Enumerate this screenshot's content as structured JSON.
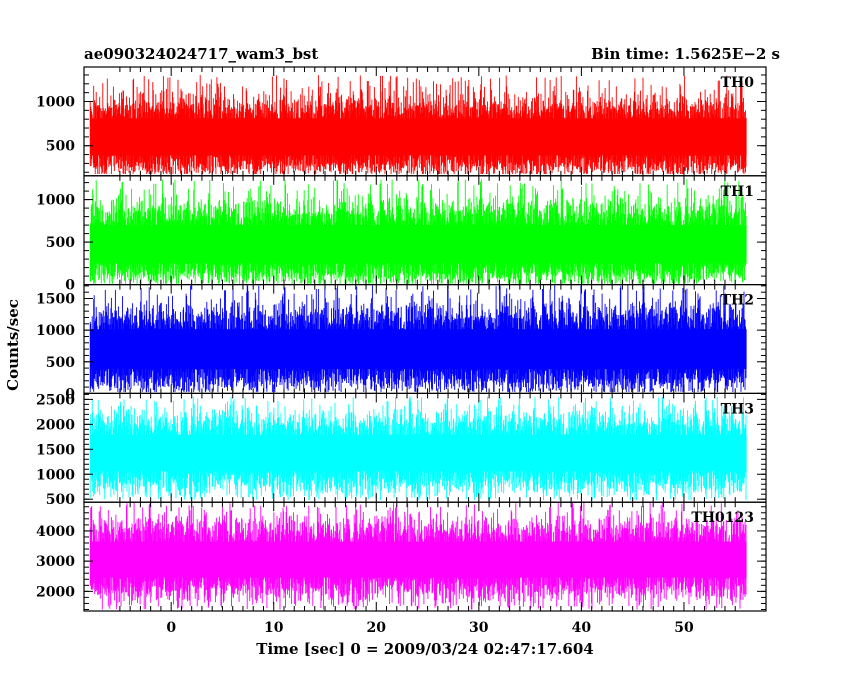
{
  "chart_data": {
    "type": "line",
    "title_left": "ae090324024717_wam3_bst",
    "title_right": "Bin time: 1.5625E−2 s",
    "xlabel": "Time [sec] 0 = 2009/03/24 02:47:17.604",
    "ylabel": "Counts/sec",
    "xlim": [
      -8.5,
      58
    ],
    "data_x_range": [
      -7.9,
      56.1
    ],
    "bin_time": 0.015625,
    "x_ticks": [
      "0",
      "10",
      "20",
      "30",
      "40",
      "50"
    ],
    "x_tick_values": [
      0,
      10,
      20,
      30,
      40,
      50
    ],
    "panels": [
      {
        "name": "TH0",
        "color": "#ff0000",
        "ylim": [
          160,
          1390
        ],
        "yticks": [
          "500",
          "1000"
        ],
        "ytick_values": [
          500,
          1000
        ],
        "noise": {
          "low": 180,
          "high": 1300,
          "mean": 560,
          "core_low": 300,
          "core_high": 900
        }
      },
      {
        "name": "TH1",
        "color": "#00ff00",
        "ylim": [
          0,
          1280
        ],
        "yticks": [
          "0",
          "500",
          "1000"
        ],
        "ytick_values": [
          0,
          500,
          1000
        ],
        "noise": {
          "low": 10,
          "high": 1240,
          "mean": 430,
          "core_low": 150,
          "core_high": 800
        }
      },
      {
        "name": "TH2",
        "color": "#0000ff",
        "ylim": [
          0,
          1720
        ],
        "yticks": [
          "0",
          "500",
          "1000",
          "1500"
        ],
        "ytick_values": [
          0,
          500,
          1000,
          1500
        ],
        "noise": {
          "low": 20,
          "high": 1720,
          "mean": 650,
          "core_low": 250,
          "core_high": 1150
        }
      },
      {
        "name": "TH3",
        "color": "#00ffff",
        "ylim": [
          440,
          2620
        ],
        "yticks": [
          "500",
          "1000",
          "1500",
          "2000",
          "2500"
        ],
        "ytick_values": [
          500,
          1000,
          1500,
          2000,
          2500
        ],
        "noise": {
          "low": 480,
          "high": 2560,
          "mean": 1380,
          "core_low": 900,
          "core_high": 1950
        }
      },
      {
        "name": "TH0123",
        "color": "#ff00ff",
        "ylim": [
          1350,
          4950
        ],
        "yticks": [
          "2000",
          "3000",
          "4000"
        ],
        "ytick_values": [
          2000,
          3000,
          4000
        ],
        "noise": {
          "low": 1400,
          "high": 4950,
          "mean": 3030,
          "core_low": 2200,
          "core_high": 3900
        }
      }
    ]
  }
}
